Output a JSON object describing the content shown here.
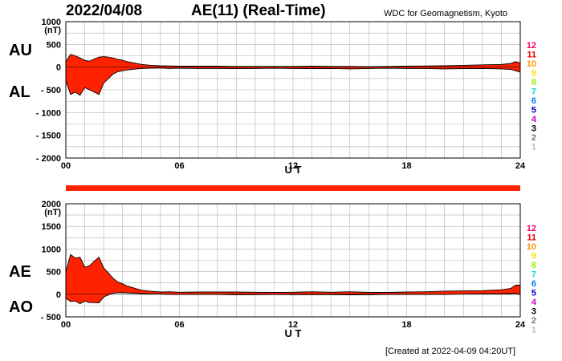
{
  "header": {
    "date": "2022/04/08",
    "title": "AE(11) (Real-Time)",
    "source": "WDC for Geomagnetism, Kyoto"
  },
  "footer": {
    "created": "[Created at 2022-04-09 04:20UT]"
  },
  "colors": {
    "fill": "#ff2200",
    "grid": "#b0b0b0",
    "axis": "#000000",
    "status_bar": "#ff2200"
  },
  "station_count_legend": [
    {
      "label": "12",
      "color": "#ff0066"
    },
    {
      "label": "11",
      "color": "#ee0000"
    },
    {
      "label": "10",
      "color": "#ff9900"
    },
    {
      "label": "9",
      "color": "#ffdd00"
    },
    {
      "label": "8",
      "color": "#99ee00"
    },
    {
      "label": "7",
      "color": "#00dddd"
    },
    {
      "label": "6",
      "color": "#0077ff"
    },
    {
      "label": "5",
      "color": "#0000cc"
    },
    {
      "label": "4",
      "color": "#cc00cc"
    },
    {
      "label": "3",
      "color": "#000000"
    },
    {
      "label": "2",
      "color": "#777777"
    },
    {
      "label": "1",
      "color": "#bbbbbb"
    }
  ],
  "chart_data": [
    {
      "type": "area",
      "panel": "AU/AL",
      "upper_label": "AU",
      "lower_label": "AL",
      "unit": "(nT)",
      "xlabel": "U T",
      "xlim": [
        0,
        24
      ],
      "ylim": [
        -2000,
        1000
      ],
      "yticks": [
        1000,
        500,
        0,
        -500,
        -1000,
        -1500,
        -2000
      ],
      "ytick_labels": [
        "1000",
        "500",
        "0",
        "- 500",
        "- 1000",
        "- 1500",
        "- 2000"
      ],
      "xticks": [
        0,
        6,
        12,
        18,
        24
      ],
      "xtick_labels": [
        "00",
        "06",
        "12",
        "18",
        "24"
      ],
      "grid": true,
      "x": [
        0,
        0.25,
        0.5,
        0.75,
        1.0,
        1.25,
        1.5,
        1.75,
        2.0,
        2.25,
        2.5,
        2.75,
        3.0,
        3.25,
        3.5,
        3.75,
        4.0,
        4.5,
        5.0,
        5.5,
        6.0,
        7.0,
        8.0,
        9.0,
        10.0,
        11.0,
        12.0,
        13.0,
        14.0,
        15.0,
        16.0,
        17.0,
        18.0,
        19.0,
        20.0,
        21.0,
        22.0,
        23.0,
        23.5,
        23.75,
        24.0
      ],
      "series": [
        {
          "name": "AU",
          "values": [
            120,
            280,
            250,
            200,
            150,
            130,
            180,
            220,
            230,
            220,
            200,
            170,
            150,
            120,
            100,
            80,
            60,
            40,
            30,
            25,
            20,
            20,
            20,
            15,
            15,
            15,
            15,
            20,
            15,
            15,
            10,
            15,
            20,
            25,
            30,
            40,
            50,
            60,
            80,
            120,
            90
          ]
        },
        {
          "name": "AL",
          "values": [
            -300,
            -600,
            -550,
            -620,
            -450,
            -500,
            -550,
            -600,
            -350,
            -250,
            -150,
            -100,
            -80,
            -60,
            -50,
            -40,
            -30,
            -25,
            -20,
            -30,
            -25,
            -30,
            -30,
            -35,
            -30,
            -25,
            -30,
            -35,
            -30,
            -40,
            -30,
            -25,
            -30,
            -30,
            -40,
            -35,
            -30,
            -40,
            -50,
            -80,
            -110
          ]
        }
      ]
    },
    {
      "type": "area",
      "panel": "AE/AO",
      "upper_label": "AE",
      "lower_label": "AO",
      "unit": "(nT)",
      "xlabel": "U T",
      "xlim": [
        0,
        24
      ],
      "ylim": [
        -500,
        2000
      ],
      "yticks": [
        2000,
        1500,
        1000,
        500,
        0,
        -500
      ],
      "ytick_labels": [
        "2000",
        "1500",
        "1000",
        "500",
        "0",
        "- 500"
      ],
      "xticks": [
        0,
        6,
        12,
        18,
        24
      ],
      "xtick_labels": [
        "00",
        "06",
        "12",
        "18",
        "24"
      ],
      "grid": true,
      "x": [
        0,
        0.25,
        0.5,
        0.75,
        1.0,
        1.25,
        1.5,
        1.75,
        2.0,
        2.25,
        2.5,
        2.75,
        3.0,
        3.25,
        3.5,
        3.75,
        4.0,
        4.5,
        5.0,
        5.5,
        6.0,
        7.0,
        8.0,
        9.0,
        10.0,
        11.0,
        12.0,
        13.0,
        14.0,
        15.0,
        16.0,
        17.0,
        18.0,
        19.0,
        20.0,
        21.0,
        22.0,
        23.0,
        23.5,
        23.75,
        24.0
      ],
      "series": [
        {
          "name": "AE",
          "values": [
            500,
            880,
            800,
            820,
            600,
            630,
            730,
            820,
            580,
            470,
            350,
            270,
            230,
            180,
            150,
            120,
            90,
            65,
            50,
            55,
            45,
            50,
            50,
            50,
            45,
            40,
            45,
            55,
            45,
            55,
            40,
            40,
            50,
            55,
            70,
            75,
            80,
            100,
            130,
            200,
            200
          ]
        },
        {
          "name": "AO",
          "values": [
            -90,
            -160,
            -150,
            -210,
            -150,
            -185,
            -185,
            -190,
            -60,
            -15,
            25,
            35,
            35,
            30,
            25,
            20,
            15,
            8,
            5,
            -3,
            -3,
            -5,
            -5,
            -10,
            -8,
            -5,
            -8,
            -8,
            -8,
            -13,
            -10,
            -5,
            -5,
            -3,
            -5,
            3,
            10,
            10,
            15,
            20,
            -10
          ]
        }
      ]
    }
  ]
}
